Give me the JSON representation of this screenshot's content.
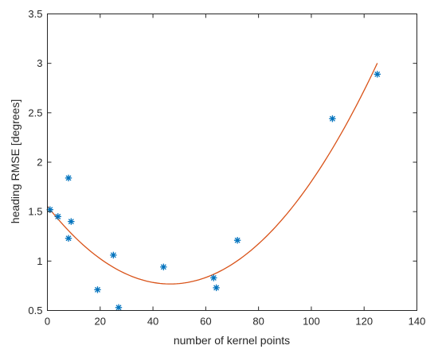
{
  "chart_data": {
    "type": "scatter",
    "title": "",
    "xlabel": "number of kernel points",
    "ylabel": "heading RMSE [degrees]",
    "xlim": [
      0,
      140
    ],
    "ylim": [
      0.5,
      3.5
    ],
    "xticks": [
      0,
      20,
      40,
      60,
      80,
      100,
      120,
      140
    ],
    "yticks": [
      0.5,
      1,
      1.5,
      2,
      2.5,
      3,
      3.5
    ],
    "ytick_labels": [
      "0.5",
      "1",
      "1.5",
      "2",
      "2.5",
      "3",
      "3.5"
    ],
    "grid": false,
    "legend": "none",
    "series": [
      {
        "kind": "scatter",
        "marker": "asterisk",
        "color": "#0072BD",
        "points": [
          {
            "x": 1,
            "y": 1.52
          },
          {
            "x": 4,
            "y": 1.45
          },
          {
            "x": 8,
            "y": 1.84
          },
          {
            "x": 8,
            "y": 1.23
          },
          {
            "x": 9,
            "y": 1.4
          },
          {
            "x": 19,
            "y": 0.71
          },
          {
            "x": 25,
            "y": 1.06
          },
          {
            "x": 27,
            "y": 0.53
          },
          {
            "x": 44,
            "y": 0.94
          },
          {
            "x": 63,
            "y": 0.83
          },
          {
            "x": 64,
            "y": 0.73
          },
          {
            "x": 72,
            "y": 1.21
          },
          {
            "x": 108,
            "y": 2.44
          },
          {
            "x": 125,
            "y": 2.89
          }
        ]
      },
      {
        "kind": "line",
        "color": "#D95319",
        "fit": "quadratic",
        "coefficients": [
          1.555,
          -0.0338,
          0.000363
        ],
        "x_range": [
          0,
          125
        ]
      }
    ]
  }
}
